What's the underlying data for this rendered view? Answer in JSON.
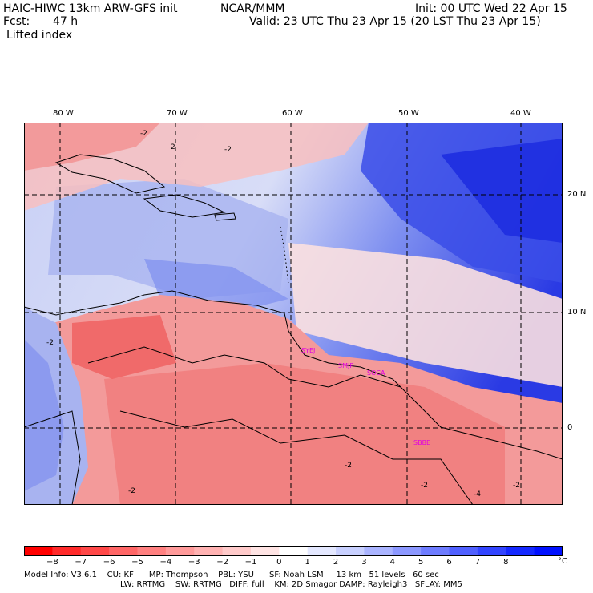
{
  "header": {
    "title": "HAIC-HIWC 13km ARW-GFS init",
    "org": "NCAR/MMM",
    "init": "Init: 00 UTC Wed 22 Apr 15",
    "fcst_label": "Fcst:",
    "fcst_value": "47 h",
    "valid": "Valid: 23 UTC Thu 23 Apr 15 (20 LST Thu 23 Apr 15)",
    "field": "Lifted index"
  },
  "map": {
    "lon_labels": [
      "80 W",
      "70 W",
      "60 W",
      "50 W",
      "40 W"
    ],
    "lat_labels": [
      "20 N",
      "10 N",
      "0"
    ],
    "stations": [
      "SYEJ",
      "SMJP",
      "SOCA",
      "SBBE"
    ],
    "contour_labels": [
      "-2",
      "2",
      "-2",
      "-2",
      "-2",
      "-2",
      "-2",
      "-4",
      "-2"
    ],
    "colors": {
      "station": "#e000e0",
      "strong_negative": "#f06060",
      "weak_negative": "#fbd0d0",
      "neutral": "#ffffff",
      "weak_positive": "#b8c4f0",
      "strong_positive": "#2030e0"
    }
  },
  "colorbar": {
    "tick_labels": [
      "−8",
      "−7",
      "−6",
      "−5",
      "−4",
      "−3",
      "−2",
      "−1",
      "0",
      "1",
      "2",
      "3",
      "4",
      "5",
      "6",
      "7",
      "8"
    ],
    "unit": "°C",
    "colors": [
      "#ff0000",
      "#ff2a2a",
      "#ff4848",
      "#ff6666",
      "#ff8080",
      "#ff9a9a",
      "#ffb2b2",
      "#ffcaca",
      "#ffe4e4",
      "#ffffff",
      "#e4e8ff",
      "#c8d0ff",
      "#aab4ff",
      "#8c98ff",
      "#6e7cff",
      "#5060ff",
      "#3244ff",
      "#1428ff",
      "#0010ff"
    ]
  },
  "model_info": {
    "line1": "Model Info: V3.6.1    CU: KF      MP: Thompson    PBL: YSU      SF: Noah LSM     13 km   51 levels   60 sec",
    "line2": "LW: RRTMG    SW: RRTMG   DIFF: full    KM: 2D Smagor DAMP: Rayleigh3   SFLAY: MM5"
  }
}
